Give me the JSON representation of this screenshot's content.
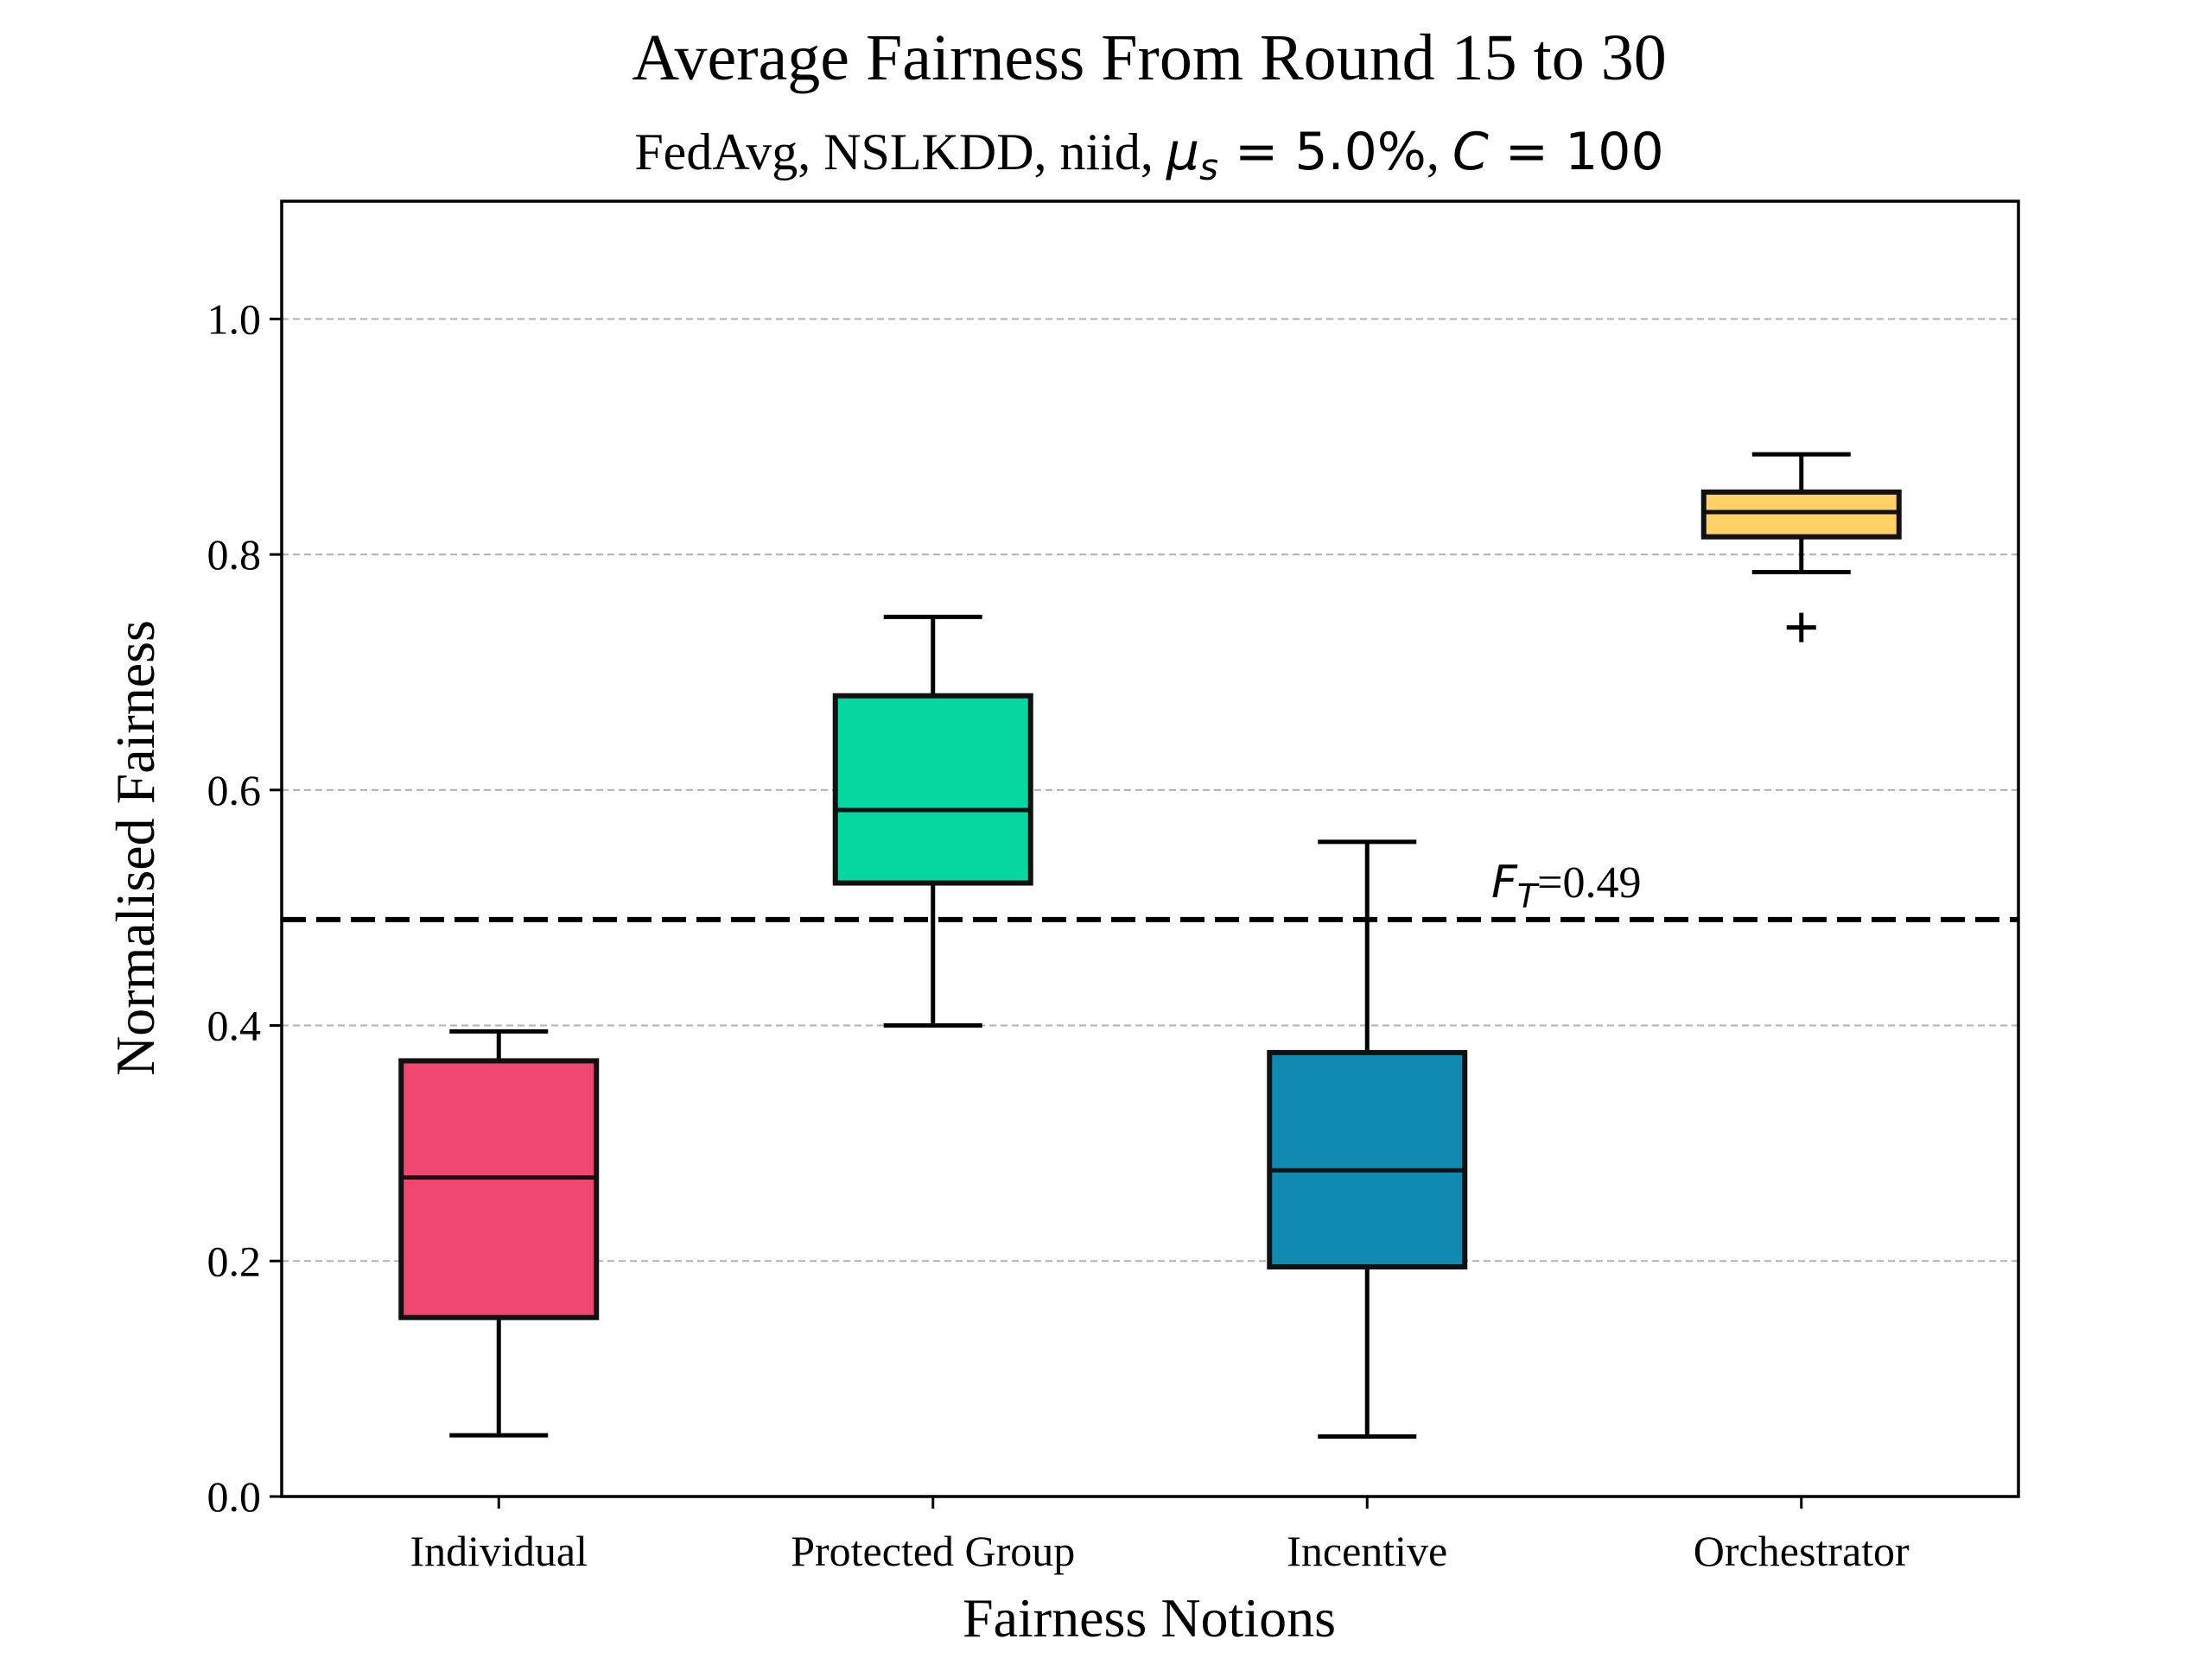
{
  "chart_data": {
    "type": "box",
    "title": "Average Fairness From Round 15 to 30",
    "subtitle": {
      "prefix": "FedAvg, NSLKDD, niid, ",
      "mu_symbol": "μ",
      "mu_sub": "s",
      "mu_value": " = 5.0%",
      "sep": ", ",
      "c_symbol": "C",
      "c_value": " = 100"
    },
    "xlabel": "Fairness Notions",
    "ylabel": "Normalised Fairness",
    "ylim": [
      0.0,
      1.1
    ],
    "yticks": [
      0.0,
      0.2,
      0.4,
      0.6,
      0.8,
      1.0
    ],
    "ytick_labels": [
      "0.0",
      "0.2",
      "0.4",
      "0.6",
      "0.8",
      "1.0"
    ],
    "grid": "horizontal dashed",
    "categories": [
      "Individual",
      "Protected Group",
      "Incentive",
      "Orchestrator"
    ],
    "boxes": [
      {
        "label": "Individual",
        "whislo": 0.052,
        "q1": 0.152,
        "median": 0.271,
        "q3": 0.37,
        "whishi": 0.395,
        "fliers": [],
        "color": "#EF476F"
      },
      {
        "label": "Protected Group",
        "whislo": 0.4,
        "q1": 0.521,
        "median": 0.583,
        "q3": 0.68,
        "whishi": 0.747,
        "fliers": [],
        "color": "#06D6A0"
      },
      {
        "label": "Incentive",
        "whislo": 0.051,
        "q1": 0.195,
        "median": 0.277,
        "q3": 0.377,
        "whishi": 0.556,
        "fliers": [],
        "color": "#118AB2"
      },
      {
        "label": "Orchestrator",
        "whislo": 0.785,
        "q1": 0.815,
        "median": 0.836,
        "q3": 0.853,
        "whishi": 0.885,
        "fliers": [
          0.738
        ],
        "color": "#FFD166"
      }
    ],
    "threshold": {
      "value": 0.49,
      "label_symbol": "F",
      "label_sub": "T",
      "label_value": "=0.49",
      "style": "dashed",
      "color": "#000000"
    }
  }
}
